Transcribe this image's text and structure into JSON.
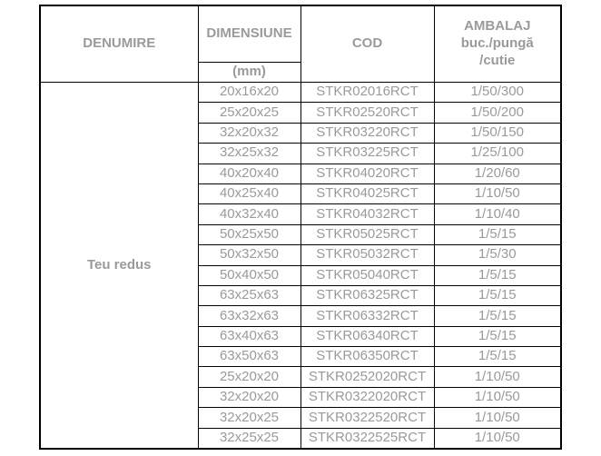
{
  "table": {
    "headers": {
      "denumire": "DENUMIRE",
      "dimensiune": "DIMENSIUNE",
      "dimensiune_unit": "(mm)",
      "cod": "COD",
      "ambalaj": "AMBALAJ\nbuc./pungă\n/cutie"
    },
    "product_name": "Teu redus",
    "text_color": "#9a9a9a",
    "border_color": "#000000",
    "rows": [
      {
        "dimensiune": "20x16x20",
        "cod": "STKR02016RCT",
        "ambalaj": "1/50/300"
      },
      {
        "dimensiune": "25x20x25",
        "cod": "STKR02520RCT",
        "ambalaj": "1/50/200"
      },
      {
        "dimensiune": "32x20x32",
        "cod": "STKR03220RCT",
        "ambalaj": "1/50/150"
      },
      {
        "dimensiune": "32x25x32",
        "cod": "STKR03225RCT",
        "ambalaj": "1/25/100"
      },
      {
        "dimensiune": "40x20x40",
        "cod": "STKR04020RCT",
        "ambalaj": "1/20/60"
      },
      {
        "dimensiune": "40x25x40",
        "cod": "STKR04025RCT",
        "ambalaj": "1/10/50"
      },
      {
        "dimensiune": "40x32x40",
        "cod": "STKR04032RCT",
        "ambalaj": "1/10/40"
      },
      {
        "dimensiune": "50x25x50",
        "cod": "STKR05025RCT",
        "ambalaj": "1/5/15"
      },
      {
        "dimensiune": "50x32x50",
        "cod": "STKR05032RCT",
        "ambalaj": "1/5/30"
      },
      {
        "dimensiune": "50x40x50",
        "cod": "STKR05040RCT",
        "ambalaj": "1/5/15"
      },
      {
        "dimensiune": "63x25x63",
        "cod": "STKR06325RCT",
        "ambalaj": "1/5/15"
      },
      {
        "dimensiune": "63x32x63",
        "cod": "STKR06332RCT",
        "ambalaj": "1/5/15"
      },
      {
        "dimensiune": "63x40x63",
        "cod": "STKR06340RCT",
        "ambalaj": "1/5/15"
      },
      {
        "dimensiune": "63x50x63",
        "cod": "STKR06350RCT",
        "ambalaj": "1/5/15"
      },
      {
        "dimensiune": "25x20x20",
        "cod": "STKR0252020RCT",
        "ambalaj": "1/10/50"
      },
      {
        "dimensiune": "32x20x20",
        "cod": "STKR0322020RCT",
        "ambalaj": "1/10/50"
      },
      {
        "dimensiune": "32x20x25",
        "cod": "STKR0322520RCT",
        "ambalaj": "1/10/50"
      },
      {
        "dimensiune": "32x25x25",
        "cod": "STKR0322525RCT",
        "ambalaj": "1/10/50"
      }
    ]
  }
}
